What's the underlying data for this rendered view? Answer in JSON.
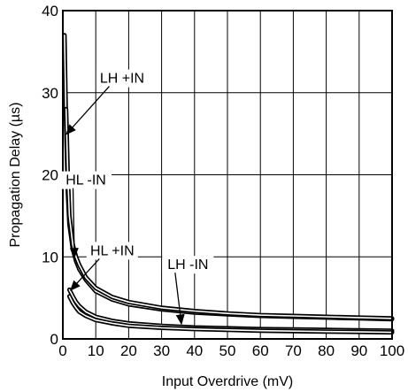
{
  "chart_data": {
    "type": "line",
    "title": "",
    "xlabel": "Input Overdrive (mV)",
    "ylabel": "Propagation Delay (µs)",
    "xlim": [
      0,
      100
    ],
    "ylim": [
      0,
      40
    ],
    "xticks": [
      "0",
      "10",
      "20",
      "30",
      "40",
      "50",
      "60",
      "70",
      "80",
      "90",
      "100"
    ],
    "yticks": [
      "0",
      "10",
      "20",
      "30",
      "40"
    ],
    "grid": true,
    "series": [
      {
        "name": "LH +IN",
        "x": [
          0.5,
          0.8,
          1,
          1.5,
          2,
          3,
          4,
          5,
          7,
          10,
          15,
          20,
          30,
          40,
          50,
          60,
          70,
          80,
          90,
          100
        ],
        "y": [
          37,
          30,
          26,
          18,
          14,
          11,
          9.5,
          8.5,
          7.2,
          5.8,
          4.8,
          4.2,
          3.6,
          3.2,
          3.0,
          2.8,
          2.7,
          2.6,
          2.5,
          2.4
        ]
      },
      {
        "name": "HL -IN",
        "x": [
          1,
          1.5,
          2,
          3,
          4,
          5,
          7,
          10,
          15,
          20,
          30,
          40,
          50,
          60,
          70,
          80,
          90,
          100
        ],
        "y": [
          28,
          20,
          15,
          11.5,
          10,
          9,
          7.5,
          6.2,
          5.1,
          4.5,
          3.8,
          3.4,
          3.1,
          2.9,
          2.8,
          2.7,
          2.6,
          2.5
        ]
      },
      {
        "name": "HL +IN",
        "x": [
          2,
          3,
          4,
          5,
          7,
          10,
          15,
          20,
          30,
          40,
          50,
          60,
          70,
          80,
          90,
          100
        ],
        "y": [
          6.0,
          5.2,
          4.5,
          4.0,
          3.3,
          2.7,
          2.2,
          1.9,
          1.6,
          1.4,
          1.3,
          1.2,
          1.15,
          1.1,
          1.05,
          1.0
        ]
      },
      {
        "name": "LH -IN",
        "x": [
          2,
          3,
          4,
          5,
          7,
          10,
          15,
          20,
          30,
          40,
          50,
          60,
          70,
          80,
          90,
          100
        ],
        "y": [
          5.2,
          4.4,
          3.8,
          3.3,
          2.8,
          2.3,
          1.9,
          1.6,
          1.35,
          1.2,
          1.1,
          1.0,
          0.95,
          0.9,
          0.85,
          0.8
        ]
      }
    ],
    "annotations": [
      {
        "text": "LH +IN",
        "label_x": 18,
        "label_y": 31.2,
        "arrow_to_x": 1.2,
        "arrow_to_y": 25
      },
      {
        "text": "HL -IN",
        "label_x": 7,
        "label_y": 18.8,
        "arrow_to_x": 3.5,
        "arrow_to_y": 10
      },
      {
        "text": "HL +IN",
        "label_x": 15,
        "label_y": 10.2,
        "arrow_to_x": 2.5,
        "arrow_to_y": 6
      },
      {
        "text": "LH -IN",
        "label_x": 38,
        "label_y": 8.5,
        "arrow_to_x": 36,
        "arrow_to_y": 1.9
      }
    ]
  }
}
